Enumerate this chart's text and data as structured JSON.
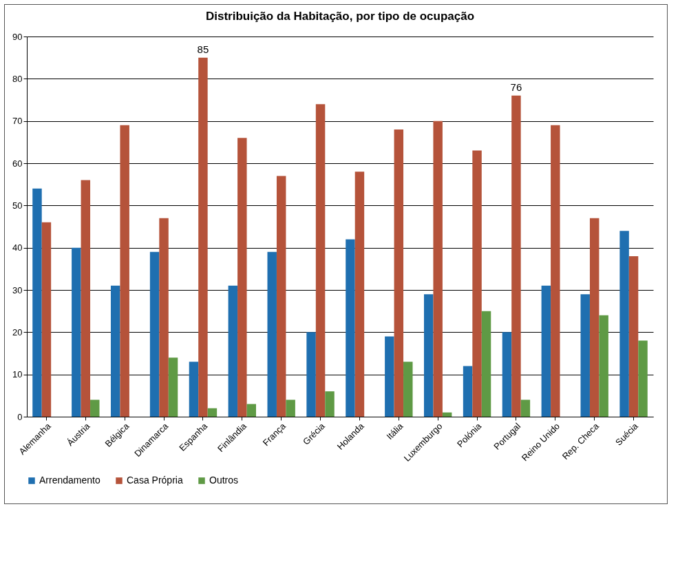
{
  "chart_data": {
    "type": "bar",
    "title": "Distribuição da Habitação, por tipo de ocupação",
    "categories": [
      "Alemanha",
      "Áustria",
      "Bélgica",
      "Dinamarca",
      "Espanha",
      "Finlândia",
      "França",
      "Grécia",
      "Holanda",
      "Itália",
      "Luxemburgo",
      "Polónia",
      "Portugal",
      "Reino Unido",
      "Rep. Checa",
      "Suécia"
    ],
    "series": [
      {
        "name": "Arrendamento",
        "color": "#1f6fb0",
        "values": [
          54,
          40,
          31,
          39,
          13,
          31,
          39,
          20,
          42,
          19,
          29,
          12,
          20,
          31,
          29,
          44
        ]
      },
      {
        "name": "Casa Própria",
        "color": "#b5533a",
        "values": [
          46,
          56,
          69,
          47,
          85,
          66,
          57,
          74,
          58,
          68,
          70,
          63,
          76,
          69,
          47,
          38
        ],
        "value_labels": [
          null,
          null,
          null,
          null,
          "85",
          null,
          null,
          null,
          null,
          null,
          null,
          null,
          "76",
          null,
          null,
          null
        ]
      },
      {
        "name": "Outros",
        "color": "#5f9a45",
        "values": [
          0,
          4,
          0,
          14,
          2,
          3,
          4,
          6,
          0,
          13,
          1,
          25,
          4,
          0,
          24,
          18
        ]
      }
    ],
    "ylim": [
      0,
      90
    ],
    "yticks": [
      0,
      10,
      20,
      30,
      40,
      50,
      60,
      70,
      80,
      90
    ],
    "grid": "y",
    "legend": "bottom"
  }
}
